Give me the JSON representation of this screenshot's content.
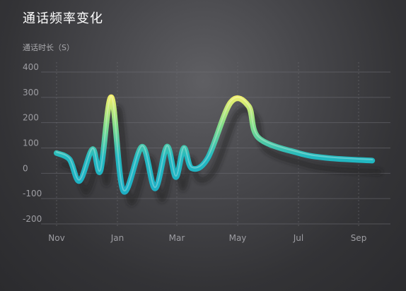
{
  "title": "通话频率变化",
  "chart_data": {
    "type": "line",
    "title": "通话频率变化",
    "ylabel": "通话时长（S）",
    "xlabel": "",
    "ylim": [
      -200,
      400
    ],
    "yticks": [
      400,
      300,
      200,
      100,
      0,
      -100,
      -200
    ],
    "xticks": [
      "Nov",
      "Jan",
      "Mar",
      "May",
      "Jul",
      "Sep"
    ],
    "grid": true,
    "legend": "none",
    "series": [
      {
        "color_low": "#1aa8c8",
        "color_high": "#f4f06a",
        "points": [
          {
            "x": "2011-11-01",
            "y": 80
          },
          {
            "x": "2011-11-14",
            "y": 55
          },
          {
            "x": "2011-11-24",
            "y": -30
          },
          {
            "x": "2011-12-07",
            "y": 95
          },
          {
            "x": "2011-12-15",
            "y": 10
          },
          {
            "x": "2011-12-26",
            "y": 300
          },
          {
            "x": "2012-01-07",
            "y": -70
          },
          {
            "x": "2012-01-26",
            "y": 105
          },
          {
            "x": "2012-02-08",
            "y": -60
          },
          {
            "x": "2012-02-20",
            "y": 105
          },
          {
            "x": "2012-02-29",
            "y": -15
          },
          {
            "x": "2012-03-08",
            "y": 100
          },
          {
            "x": "2012-03-16",
            "y": 20
          },
          {
            "x": "2012-04-01",
            "y": 60
          },
          {
            "x": "2012-04-24",
            "y": 280
          },
          {
            "x": "2012-05-12",
            "y": 265
          },
          {
            "x": "2012-05-22",
            "y": 140
          },
          {
            "x": "2012-07-01",
            "y": 80
          },
          {
            "x": "2012-08-01",
            "y": 60
          },
          {
            "x": "2012-09-15",
            "y": 50
          }
        ]
      }
    ]
  }
}
